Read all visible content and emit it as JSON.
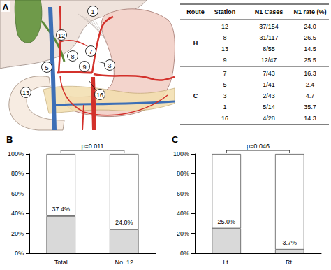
{
  "diagram": {
    "label": "A",
    "stations": [
      "1",
      "12",
      "3",
      "7",
      "8",
      "9",
      "5",
      "13",
      "16"
    ]
  },
  "table": {
    "header": [
      "Route",
      "Station",
      "N1 Cases",
      "N1 rate (%)"
    ],
    "groups": [
      {
        "route": "H",
        "rows": [
          [
            "12",
            "37/154",
            "24.0"
          ],
          [
            "8",
            "31/117",
            "26.5"
          ],
          [
            "13",
            "8/55",
            "14.5"
          ],
          [
            "9",
            "12/47",
            "25.5"
          ]
        ]
      },
      {
        "route": "C",
        "rows": [
          [
            "7",
            "7/43",
            "16.3"
          ],
          [
            "5",
            "1/41",
            "2.4"
          ],
          [
            "3",
            "2/43",
            "4.7"
          ],
          [
            "1",
            "5/14",
            "35.7"
          ],
          [
            "16",
            "4/28",
            "14.3"
          ]
        ]
      }
    ]
  },
  "chart_data": [
    {
      "type": "bar",
      "title": "B",
      "annotation": "p=0.011",
      "categories": [
        "Total",
        "No. 12"
      ],
      "stacked": true,
      "grid": false,
      "data_labels": true,
      "ylim": [
        0,
        100
      ],
      "yticks": [
        {
          "value": 0,
          "label": "0%"
        },
        {
          "value": 20,
          "label": "20%"
        },
        {
          "value": 40,
          "label": "40%"
        },
        {
          "value": 60,
          "label": "60%"
        },
        {
          "value": 80,
          "label": "80%"
        },
        {
          "value": 100,
          "label": "100%"
        }
      ],
      "series": [
        {
          "color": "#d9d9d9",
          "values": [
            37.4,
            24.0
          ],
          "value_labels": [
            "37.4%",
            "24.0%"
          ]
        },
        {
          "color": "#ffffff",
          "values": [
            62.6,
            76.0
          ]
        }
      ]
    },
    {
      "type": "bar",
      "title": "C",
      "annotation": "p=0.046",
      "categories": [
        "Lt.",
        "Rt."
      ],
      "stacked": true,
      "grid": false,
      "data_labels": true,
      "ylim": [
        0,
        100
      ],
      "yticks": [
        {
          "value": 0,
          "label": "0%"
        },
        {
          "value": 20,
          "label": "20%"
        },
        {
          "value": 40,
          "label": "40%"
        },
        {
          "value": 60,
          "label": "60%"
        },
        {
          "value": 80,
          "label": "80%"
        },
        {
          "value": 100,
          "label": "100%"
        }
      ],
      "series": [
        {
          "color": "#d9d9d9",
          "values": [
            25.0,
            3.7
          ],
          "value_labels": [
            "25.0%",
            "3.7%"
          ]
        },
        {
          "color": "#ffffff",
          "values": [
            75.0,
            96.3
          ]
        }
      ]
    }
  ]
}
